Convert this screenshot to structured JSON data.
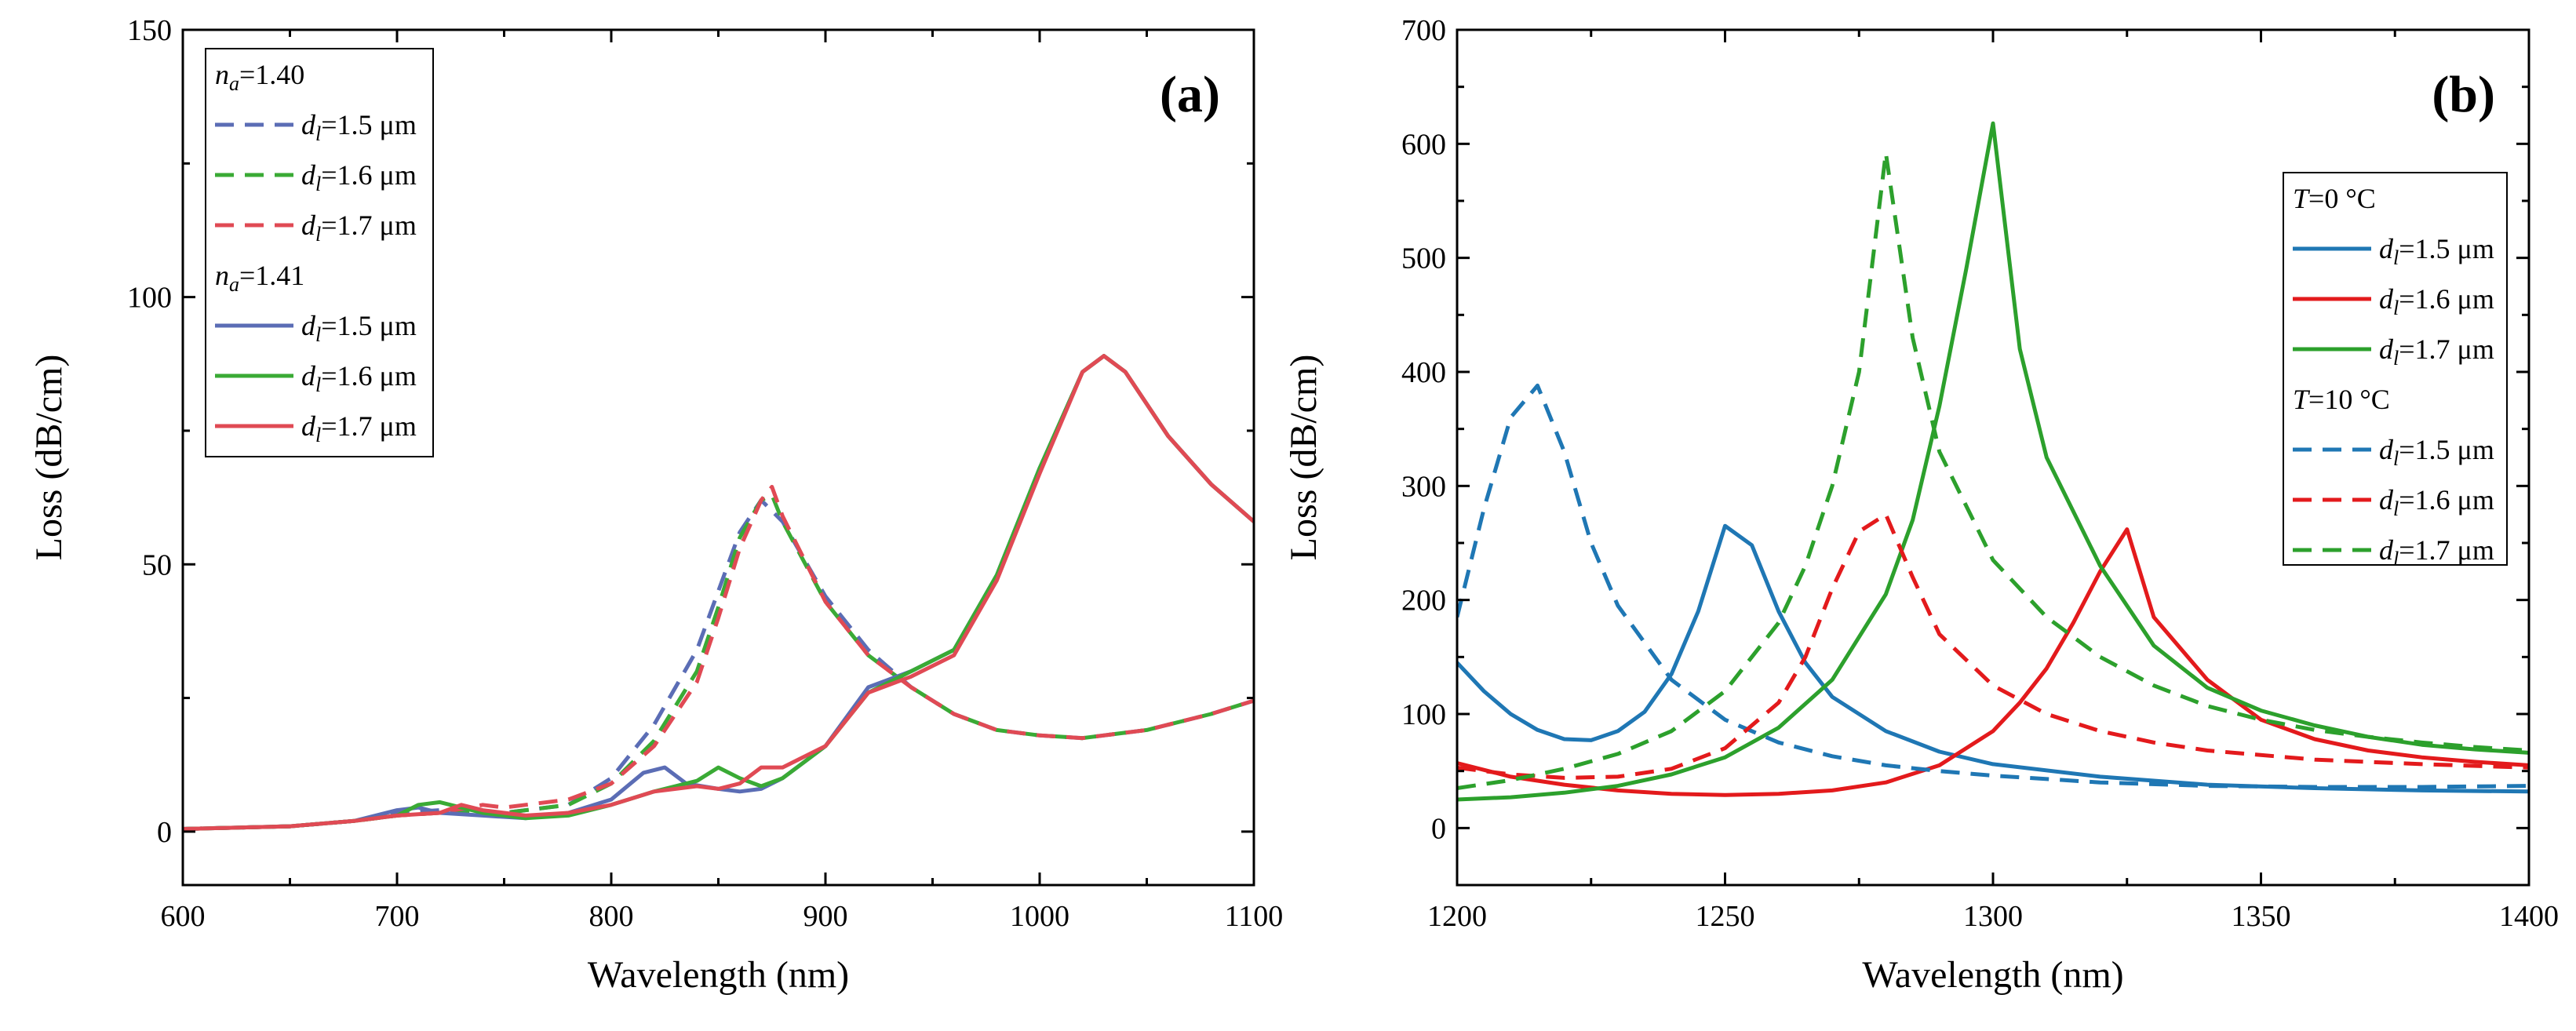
{
  "chart_data": [
    {
      "type": "line",
      "panel_label": "(a)",
      "xlabel": "Wavelength (nm)",
      "ylabel": "Loss (dB/cm)",
      "xlim": [
        600,
        1100
      ],
      "ylim": [
        -10,
        150
      ],
      "xticks": [
        600,
        700,
        800,
        900,
        1000,
        1100
      ],
      "yticks": [
        0,
        50,
        100,
        150
      ],
      "grid": false,
      "legend_position": "top-left",
      "legend_groups": [
        {
          "var": "n",
          "sub": "a",
          "value": "=1.40",
          "series": [
            0,
            1,
            2
          ]
        },
        {
          "var": "n",
          "sub": "a",
          "value": "=1.41",
          "series": [
            3,
            4,
            5
          ]
        }
      ],
      "series": [
        {
          "name": "d",
          "sub": "l",
          "value": "=1.5 μm",
          "color": "#5b6db5",
          "dash": true,
          "x": [
            600,
            650,
            680,
            700,
            720,
            750,
            780,
            800,
            820,
            840,
            850,
            860,
            870,
            880,
            900,
            920,
            940,
            960,
            980,
            1000,
            1020,
            1050,
            1080,
            1100
          ],
          "y": [
            0.5,
            1,
            2,
            3.5,
            4,
            3.5,
            5,
            10,
            20,
            34,
            45,
            56,
            62,
            58,
            44,
            34,
            27,
            22,
            19,
            18,
            17.5,
            19,
            22,
            24.5
          ]
        },
        {
          "name": "d",
          "sub": "l",
          "value": "=1.6 μm",
          "color": "#3aaa35",
          "dash": true,
          "x": [
            600,
            650,
            680,
            700,
            720,
            750,
            780,
            800,
            820,
            840,
            850,
            860,
            870,
            875,
            880,
            900,
            920,
            940,
            960,
            980,
            1000,
            1020,
            1050,
            1080,
            1100
          ],
          "y": [
            0.5,
            1,
            2,
            3,
            3.5,
            3.5,
            5,
            9,
            17,
            30,
            42,
            55,
            62,
            63,
            58,
            43,
            33,
            27,
            22,
            19,
            18,
            17.5,
            19,
            22,
            24.5
          ]
        },
        {
          "name": "d",
          "sub": "l",
          "value": "=1.7 μm",
          "color": "#e04a54",
          "dash": true,
          "x": [
            600,
            650,
            680,
            700,
            720,
            740,
            750,
            780,
            800,
            820,
            840,
            850,
            860,
            870,
            875,
            880,
            900,
            920,
            940,
            960,
            980,
            1000,
            1020,
            1050,
            1080,
            1100
          ],
          "y": [
            0.5,
            1,
            2,
            3,
            3.5,
            5,
            4.5,
            6,
            9,
            16,
            28,
            40,
            53,
            62,
            64.5,
            59,
            43,
            33,
            27,
            22,
            19,
            18,
            17.5,
            19,
            22,
            24.5
          ]
        },
        {
          "name": "d",
          "sub": "l",
          "value": "=1.5 μm",
          "color": "#5b6db5",
          "dash": false,
          "x": [
            600,
            650,
            680,
            700,
            710,
            720,
            740,
            760,
            780,
            800,
            815,
            825,
            835,
            850,
            860,
            870,
            880,
            900,
            920,
            940,
            960,
            980,
            1000,
            1020,
            1030,
            1040,
            1060,
            1080,
            1100
          ],
          "y": [
            0.5,
            1,
            2,
            4,
            4.5,
            3.5,
            3,
            2.5,
            3.5,
            6,
            11,
            12,
            9,
            8,
            7.5,
            8,
            10,
            16,
            27,
            30,
            34,
            48,
            68,
            86,
            89,
            86,
            74,
            65,
            58
          ]
        },
        {
          "name": "d",
          "sub": "l",
          "value": "=1.6 μm",
          "color": "#3aaa35",
          "dash": false,
          "x": [
            600,
            650,
            680,
            700,
            710,
            720,
            740,
            760,
            780,
            800,
            820,
            840,
            850,
            860,
            870,
            880,
            900,
            920,
            940,
            960,
            980,
            1000,
            1020,
            1030,
            1040,
            1060,
            1080,
            1100
          ],
          "y": [
            0.5,
            1,
            2,
            3,
            5,
            5.5,
            3.5,
            2.5,
            3,
            5,
            7.5,
            9.5,
            12,
            10,
            8.5,
            10,
            16,
            26,
            30,
            34,
            48,
            68,
            86,
            89,
            86,
            74,
            65,
            58
          ]
        },
        {
          "name": "d",
          "sub": "l",
          "value": "=1.7 μm",
          "color": "#e04a54",
          "dash": false,
          "x": [
            600,
            650,
            680,
            700,
            720,
            730,
            740,
            760,
            780,
            800,
            820,
            840,
            850,
            860,
            870,
            880,
            900,
            920,
            940,
            960,
            980,
            1000,
            1020,
            1030,
            1040,
            1060,
            1080,
            1100
          ],
          "y": [
            0.5,
            1,
            2,
            3,
            3.5,
            5,
            4,
            3,
            3.5,
            5,
            7.5,
            8.5,
            8,
            9,
            12,
            12,
            16,
            26,
            29,
            33,
            47,
            67,
            86,
            89,
            86,
            74,
            65,
            58
          ]
        }
      ]
    },
    {
      "type": "line",
      "panel_label": "(b)",
      "xlabel": "Wavelength (nm)",
      "ylabel": "Loss (dB/cm)",
      "xlim": [
        1200,
        1400
      ],
      "ylim": [
        -50,
        700
      ],
      "xticks": [
        1200,
        1250,
        1300,
        1350,
        1400
      ],
      "yticks": [
        0,
        100,
        200,
        300,
        400,
        500,
        600,
        700
      ],
      "grid": false,
      "legend_position": "top-right",
      "legend_groups": [
        {
          "var": "T",
          "sub": "",
          "value": "=0 °C",
          "series": [
            0,
            1,
            2
          ]
        },
        {
          "var": "T",
          "sub": "",
          "value": "=10 °C",
          "series": [
            3,
            4,
            5
          ]
        }
      ],
      "series": [
        {
          "name": "d",
          "sub": "l",
          "value": "=1.5 μm",
          "color": "#1f77b4",
          "dash": false,
          "x": [
            1200,
            1205,
            1210,
            1215,
            1220,
            1225,
            1230,
            1235,
            1240,
            1245,
            1250,
            1255,
            1260,
            1265,
            1270,
            1280,
            1290,
            1300,
            1320,
            1340,
            1360,
            1380,
            1400
          ],
          "y": [
            145,
            120,
            100,
            86,
            78,
            77,
            85,
            102,
            135,
            190,
            265,
            248,
            190,
            145,
            115,
            85,
            67,
            56,
            45,
            38,
            35,
            33,
            32
          ]
        },
        {
          "name": "d",
          "sub": "l",
          "value": "=1.6 μm",
          "color": "#e31a1c",
          "dash": false,
          "x": [
            1200,
            1210,
            1220,
            1230,
            1240,
            1250,
            1260,
            1270,
            1280,
            1290,
            1300,
            1305,
            1310,
            1315,
            1320,
            1325,
            1330,
            1340,
            1350,
            1360,
            1370,
            1380,
            1390,
            1400
          ],
          "y": [
            57,
            45,
            38,
            33,
            30,
            29,
            30,
            33,
            40,
            55,
            85,
            110,
            140,
            180,
            225,
            262,
            185,
            130,
            95,
            78,
            68,
            62,
            58,
            55
          ]
        },
        {
          "name": "d",
          "sub": "l",
          "value": "=1.7 μm",
          "color": "#2ca02c",
          "dash": false,
          "x": [
            1200,
            1210,
            1220,
            1230,
            1240,
            1250,
            1260,
            1270,
            1280,
            1285,
            1290,
            1295,
            1300,
            1305,
            1310,
            1320,
            1330,
            1340,
            1350,
            1360,
            1370,
            1380,
            1390,
            1400
          ],
          "y": [
            25,
            27,
            31,
            37,
            47,
            62,
            88,
            130,
            205,
            270,
            370,
            490,
            618,
            420,
            325,
            230,
            160,
            123,
            103,
            90,
            80,
            73,
            69,
            66
          ]
        },
        {
          "name": "d",
          "sub": "l",
          "value": "=1.5 μm",
          "color": "#1f77b4",
          "dash": true,
          "x": [
            1200,
            1205,
            1210,
            1215,
            1220,
            1225,
            1230,
            1240,
            1250,
            1260,
            1270,
            1280,
            1290,
            1300,
            1320,
            1340,
            1360,
            1380,
            1400
          ],
          "y": [
            185,
            280,
            360,
            388,
            330,
            250,
            195,
            130,
            95,
            75,
            63,
            55,
            50,
            46,
            40,
            37,
            36,
            36,
            37
          ]
        },
        {
          "name": "d",
          "sub": "l",
          "value": "=1.6 μm",
          "color": "#e31a1c",
          "dash": true,
          "x": [
            1200,
            1210,
            1220,
            1230,
            1240,
            1250,
            1260,
            1265,
            1270,
            1275,
            1280,
            1285,
            1290,
            1300,
            1310,
            1320,
            1330,
            1340,
            1360,
            1380,
            1400
          ],
          "y": [
            53,
            47,
            44,
            45,
            52,
            70,
            110,
            150,
            210,
            260,
            275,
            220,
            170,
            125,
            100,
            85,
            75,
            68,
            60,
            56,
            53
          ]
        },
        {
          "name": "d",
          "sub": "l",
          "value": "=1.7 μm",
          "color": "#2ca02c",
          "dash": true,
          "x": [
            1200,
            1210,
            1220,
            1230,
            1240,
            1250,
            1260,
            1265,
            1270,
            1275,
            1280,
            1285,
            1290,
            1300,
            1310,
            1320,
            1330,
            1340,
            1350,
            1360,
            1370,
            1380,
            1390,
            1400
          ],
          "y": [
            35,
            42,
            52,
            65,
            85,
            120,
            180,
            230,
            300,
            400,
            592,
            430,
            330,
            235,
            185,
            150,
            125,
            107,
            95,
            86,
            80,
            75,
            71,
            68
          ]
        }
      ]
    }
  ]
}
